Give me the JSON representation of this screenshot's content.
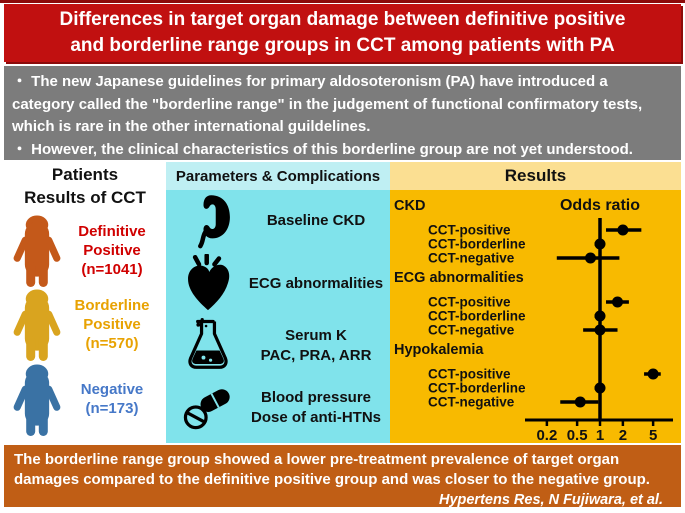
{
  "title": "Differences in target organ damage between definitive positive and borderline range groups in CCT among patients with PA",
  "intro": {
    "bullets": [
      "・ The new Japanese guidelines for primary aldosoteronism (PA) have introduced a category called the \"borderline range\" in the judgement of functional confirmatory tests, which is rare in the other international guildelines.",
      "・ However, the clinical characteristics of this borderline group are not yet understood."
    ]
  },
  "patients": {
    "header": "Patients",
    "subheader": "Results of CCT",
    "groups": [
      {
        "lines": [
          "Definitive",
          "Positive",
          "(n=1041)"
        ],
        "label_color": "#D00000",
        "icon": "person-icon",
        "icon_color": "#C4591A"
      },
      {
        "lines": [
          "Borderline",
          "Positive",
          "(n=570)"
        ],
        "label_color": "#E8A202",
        "icon": "person-icon",
        "icon_color": "#D9A41F"
      },
      {
        "lines": [
          "Negative",
          "(n=173)"
        ],
        "label_color": "#4678C8",
        "icon": "person-icon",
        "icon_color": "#3A72A4"
      }
    ]
  },
  "parameters": {
    "header": "Parameters & Complications",
    "items": [
      {
        "icon": "kidney-icon",
        "lines": [
          "Baseline CKD"
        ]
      },
      {
        "icon": "heart-icon",
        "lines": [
          "ECG abnormalities"
        ]
      },
      {
        "icon": "flask-icon",
        "lines": [
          "Serum K",
          "PAC, PRA, ARR"
        ]
      },
      {
        "icon": "pills-icon",
        "lines": [
          "Blood pressure",
          "Dose of anti-HTNs"
        ]
      }
    ]
  },
  "results": {
    "header": "Results"
  },
  "chart_data": {
    "type": "forest",
    "title": "Odds ratio",
    "x_scale": "log",
    "x_ticks": [
      0.2,
      0.5,
      1,
      2,
      5
    ],
    "x_range": [
      0.15,
      8
    ],
    "reference_line": 1,
    "groups": [
      {
        "label": "CKD",
        "rows": [
          {
            "label": "CCT-positive",
            "or": 2.0,
            "ci": [
              1.2,
              3.5
            ]
          },
          {
            "label": "CCT-borderline",
            "or": 1.0,
            "ci": [
              0.85,
              1.15
            ]
          },
          {
            "label": "CCT-negative",
            "or": 0.75,
            "ci": [
              0.27,
              1.8
            ]
          }
        ]
      },
      {
        "label": "ECG abnormalities",
        "rows": [
          {
            "label": "CCT-positive",
            "or": 1.7,
            "ci": [
              1.2,
              2.4
            ]
          },
          {
            "label": "CCT-borderline",
            "or": 1.0,
            "ci": [
              0.85,
              1.15
            ]
          },
          {
            "label": "CCT-negative",
            "or": 1.0,
            "ci": [
              0.6,
              1.7
            ]
          }
        ]
      },
      {
        "label": "Hypokalemia",
        "rows": [
          {
            "label": "CCT-positive",
            "or": 5.0,
            "ci": [
              3.8,
              6.3
            ]
          },
          {
            "label": "CCT-borderline",
            "or": 1.0,
            "ci": [
              0.85,
              1.15
            ]
          },
          {
            "label": "CCT-negative",
            "or": 0.55,
            "ci": [
              0.3,
              0.95
            ]
          }
        ]
      }
    ]
  },
  "conclusion": {
    "text": "The borderline range group showed a lower pre-treatment prevalence of target organ damages compared to the definitive positive group and was closer to the negative group.",
    "citation": "Hypertens Res, N Fujiwara, et al."
  },
  "colors": {
    "title_bg": "#C11010",
    "title_border": "#8C0A0A",
    "intro_bg": "#7C7C7C",
    "params_header_bg": "#BFEFF3",
    "params_body_bg": "#80E3EB",
    "results_header_bg": "#FBDF92",
    "results_body_bg": "#F8BA00",
    "bottom_bg": "#C05E15",
    "plot_ink": "#000000"
  }
}
